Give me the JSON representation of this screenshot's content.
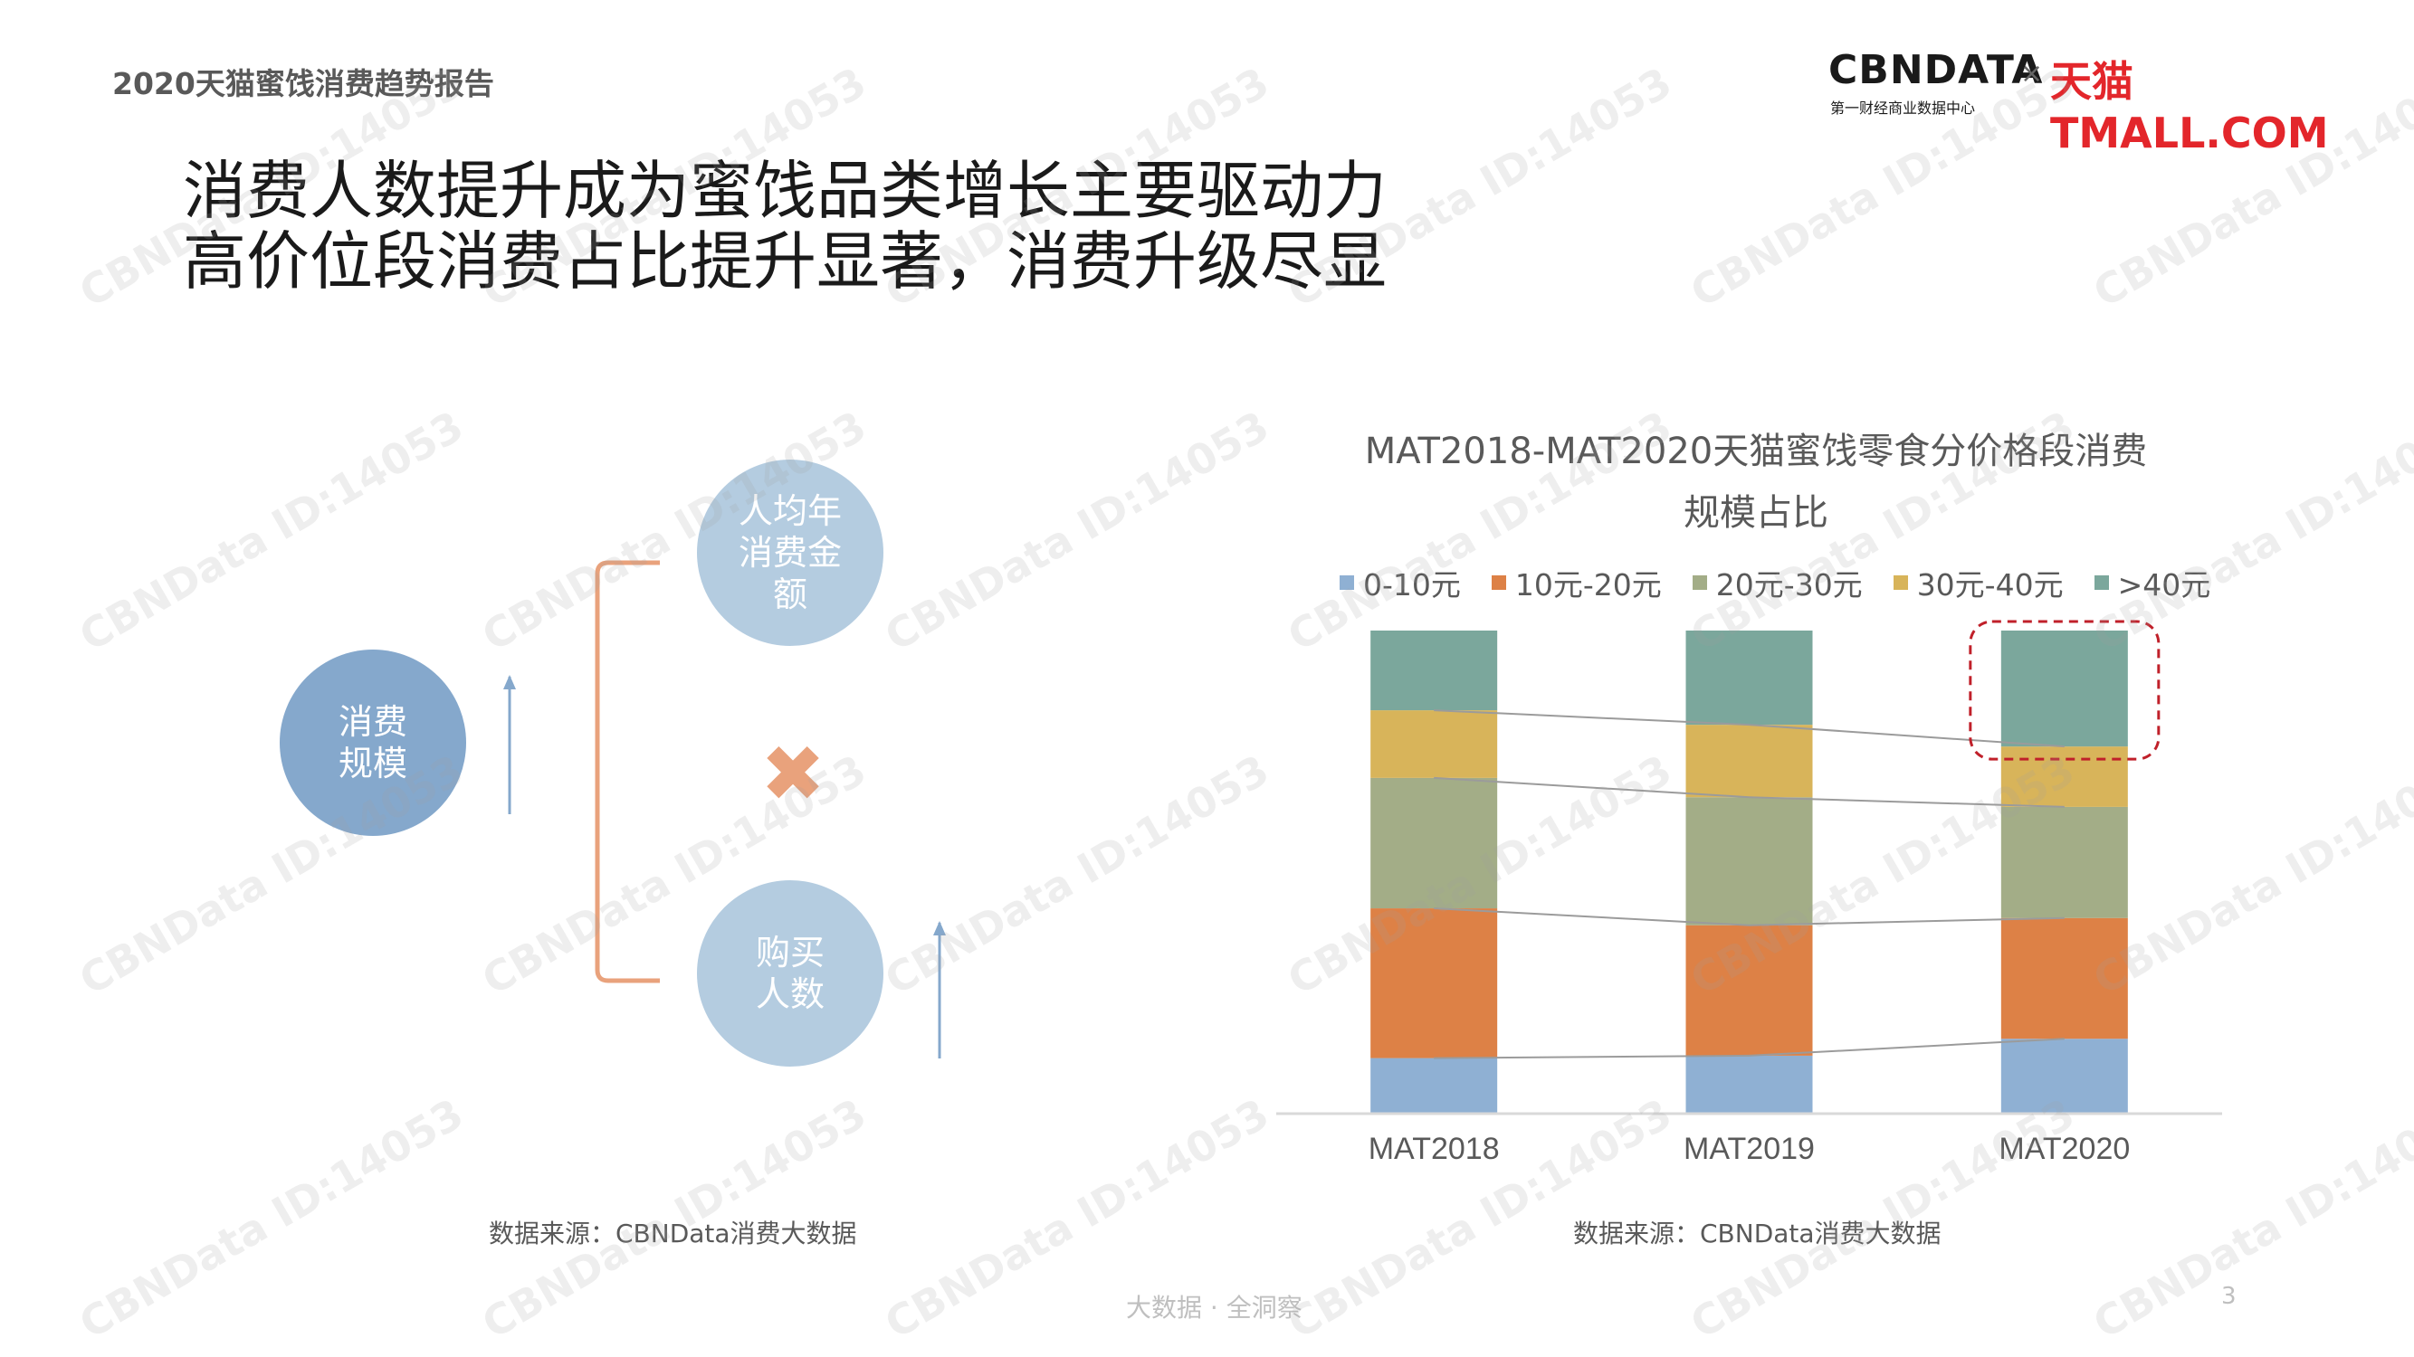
{
  "header": {
    "report_title": "2020天猫蜜饯消费趋势报告",
    "logo_cbn": "CBNDATA",
    "logo_cbn_sub": "第一财经商业数据中心",
    "logo_x": "×",
    "logo_tmall": "天猫TMALL.COM"
  },
  "headline": {
    "line1": "消费人数提升成为蜜饯品类增长主要驱动力",
    "line2": "高价位段消费占比提升显著，消费升级尽显"
  },
  "diagram": {
    "main_label_1": "消费",
    "main_label_2": "规模",
    "top_label_1": "人均年",
    "top_label_2": "消费金",
    "top_label_3": "额",
    "bottom_label_1": "购买",
    "bottom_label_2": "人数",
    "operator": "✖",
    "source": "数据来源：CBNData消费大数据",
    "colors": {
      "main": "#85a8cc",
      "sub": "#b4cce0",
      "bracket": "#e9a27c",
      "arrow": "#85a8cc"
    }
  },
  "chart_data": {
    "type": "bar",
    "stacked": "percent",
    "title_line1": "MAT2018-MAT2020天猫蜜饯零食分价格段消费",
    "title_line2": "规模占比",
    "categories": [
      "MAT2018",
      "MAT2019",
      "MAT2020"
    ],
    "series": [
      {
        "name": "0-10元",
        "color": "#8fb0d3",
        "values": [
          11.5,
          12.0,
          15.5
        ]
      },
      {
        "name": "10元-20元",
        "color": "#dd8146",
        "values": [
          31.0,
          27.0,
          25.0
        ]
      },
      {
        "name": "20元-30元",
        "color": "#a3ad87",
        "values": [
          27.0,
          26.5,
          23.0
        ]
      },
      {
        "name": "30元-40元",
        "color": "#d8b45a",
        "values": [
          14.0,
          15.0,
          12.5
        ]
      },
      {
        "name": ">40元",
        "color": "#7ba79c",
        "values": [
          16.5,
          19.5,
          24.0
        ]
      }
    ],
    "ylim": [
      0,
      100
    ],
    "legend_position": "top",
    "highlight_category": "MAT2020",
    "highlight_series": ">40元",
    "source": "数据来源：CBNData消费大数据"
  },
  "footer": {
    "tagline": "大数据 · 全洞察",
    "page": "3"
  },
  "watermark": "CBNData ID:14053"
}
